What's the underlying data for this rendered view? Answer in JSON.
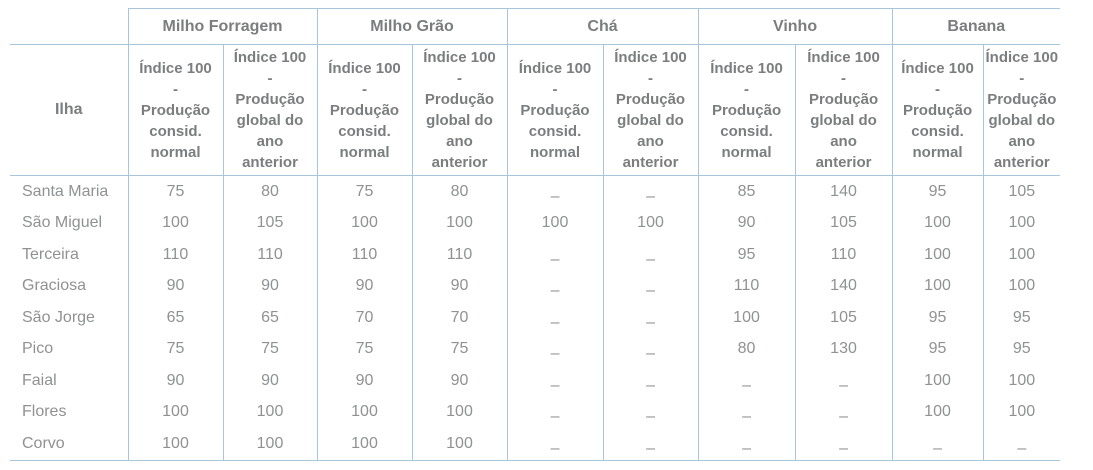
{
  "chart_data": {
    "type": "table",
    "row_header_label": "Ilha",
    "groups": [
      "Milho Forragem",
      "Milho Grão",
      "Chá",
      "Vinho",
      "Banana"
    ],
    "subheader_normal": "Índice 100 - Produção consid. normal",
    "subheader_prev": "Índice 100 - Produção global do ano anterior",
    "na_symbol": "–",
    "rows": [
      {
        "ilha": "Santa Maria",
        "values": [
          "75",
          "80",
          "75",
          "80",
          "–",
          "–",
          "85",
          "140",
          "95",
          "105"
        ]
      },
      {
        "ilha": "São Miguel",
        "values": [
          "100",
          "105",
          "100",
          "100",
          "100",
          "100",
          "90",
          "105",
          "100",
          "100"
        ]
      },
      {
        "ilha": "Terceira",
        "values": [
          "110",
          "110",
          "110",
          "110",
          "–",
          "–",
          "95",
          "110",
          "100",
          "100"
        ]
      },
      {
        "ilha": "Graciosa",
        "values": [
          "90",
          "90",
          "90",
          "90",
          "–",
          "–",
          "110",
          "140",
          "100",
          "100"
        ]
      },
      {
        "ilha": "São Jorge",
        "values": [
          "65",
          "65",
          "70",
          "70",
          "–",
          "–",
          "100",
          "105",
          "95",
          "95"
        ]
      },
      {
        "ilha": "Pico",
        "values": [
          "75",
          "75",
          "75",
          "75",
          "–",
          "–",
          "80",
          "130",
          "95",
          "95"
        ]
      },
      {
        "ilha": "Faial",
        "values": [
          "90",
          "90",
          "90",
          "90",
          "–",
          "–",
          "–",
          "–",
          "100",
          "100"
        ]
      },
      {
        "ilha": "Flores",
        "values": [
          "100",
          "100",
          "100",
          "100",
          "–",
          "–",
          "–",
          "–",
          "100",
          "100"
        ]
      },
      {
        "ilha": "Corvo",
        "values": [
          "100",
          "100",
          "100",
          "100",
          "–",
          "–",
          "–",
          "–",
          "–",
          "–"
        ]
      }
    ]
  },
  "colors": {
    "border": "#a7c6dc",
    "header_text": "#7b7d7f",
    "data_text": "#8f9193"
  }
}
